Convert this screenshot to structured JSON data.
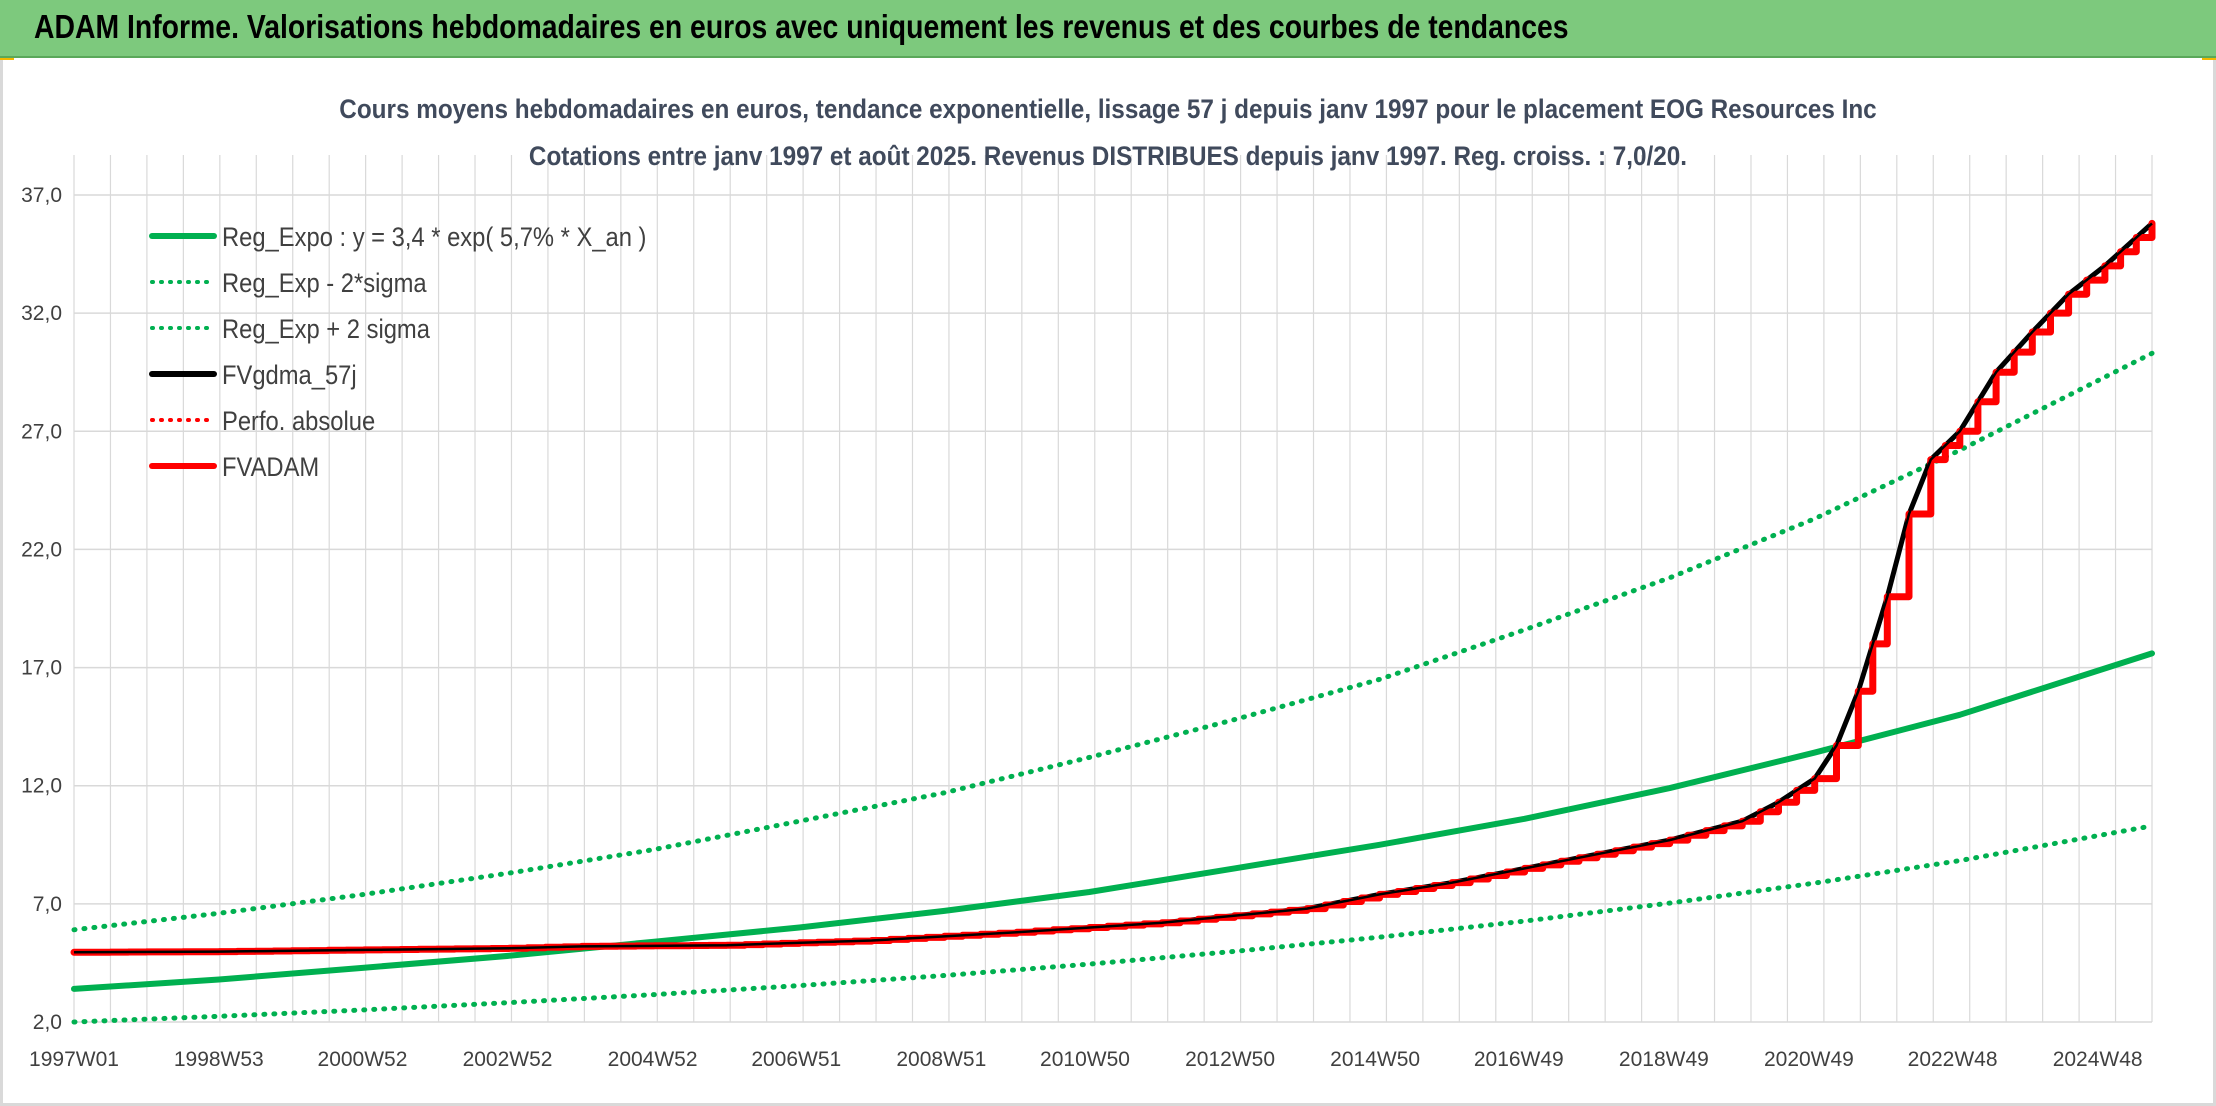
{
  "header": {
    "title": "ADAM Informe. Valorisations hebdomadaires en euros avec uniquement les revenus et des courbes de tendances"
  },
  "colors": {
    "header_bg": "#7dc97d",
    "regression": "#00b050",
    "fv_gdma": "#000000",
    "fvadam": "#ff0000",
    "grid": "#d9d9d9"
  },
  "chart_data": {
    "type": "line",
    "title": [
      "Cours moyens hebdomadaires en euros, tendance exponentielle, lissage 57 j depuis janv 1997 pour le placement EOG Resources Inc",
      "Cotations entre janv 1997 et août 2025. Revenus DISTRIBUES depuis janv 1997. Reg. croiss. : 7,0/20."
    ],
    "xlabel": "",
    "ylabel": "",
    "ylim": [
      2.0,
      37.0
    ],
    "y_ticks": [
      "2,0",
      "7,0",
      "12,0",
      "17,0",
      "22,0",
      "27,0",
      "32,0",
      "37,0"
    ],
    "x_tick_labels": [
      "1997W01",
      "1998W53",
      "2000W52",
      "2002W52",
      "2004W52",
      "2006W51",
      "2008W51",
      "2010W50",
      "2012W50",
      "2014W50",
      "2016W49",
      "2018W49",
      "2020W49",
      "2022W48",
      "2024W48"
    ],
    "x_range": [
      1997.0,
      2025.65
    ],
    "grid": true,
    "legend_position": "top-left",
    "legend": [
      {
        "label": "Reg_Expo : y = 3,4 * exp( 5,7% *  X_an )",
        "style": "solid",
        "color": "#00b050"
      },
      {
        "label": "Reg_Exp - 2*sigma",
        "style": "dotted",
        "color": "#00b050"
      },
      {
        "label": "Reg_Exp + 2 sigma",
        "style": "dotted",
        "color": "#00b050"
      },
      {
        "label": "FVgdma_57j",
        "style": "solid",
        "color": "#000000"
      },
      {
        "label": "Perfo. absolue",
        "style": "dotted",
        "color": "#ff0000"
      },
      {
        "label": "FVADAM",
        "style": "solid",
        "color": "#ff0000"
      }
    ],
    "series": [
      {
        "name": "Reg_Expo : y = 3,4 * exp( 5,7% *  X_an )",
        "x": [
          1997,
          1999,
          2001,
          2003,
          2005,
          2007,
          2009,
          2011,
          2013,
          2015,
          2017,
          2019,
          2021,
          2023,
          2025.65
        ],
        "values": [
          3.4,
          3.8,
          4.3,
          4.8,
          5.4,
          6.0,
          6.7,
          7.5,
          8.5,
          9.5,
          10.6,
          11.9,
          13.4,
          15.0,
          17.6
        ]
      },
      {
        "name": "Reg_Exp - 2*sigma",
        "x": [
          1997,
          1999,
          2001,
          2003,
          2005,
          2007,
          2009,
          2011,
          2013,
          2015,
          2017,
          2019,
          2021,
          2023,
          2025.65
        ],
        "values": [
          2.0,
          2.24,
          2.51,
          2.82,
          3.16,
          3.54,
          3.97,
          4.45,
          4.99,
          5.59,
          6.27,
          7.03,
          7.88,
          8.83,
          10.3
        ]
      },
      {
        "name": "Reg_Exp + 2 sigma",
        "x": [
          1997,
          1999,
          2001,
          2003,
          2005,
          2007,
          2009,
          2011,
          2013,
          2015,
          2017,
          2019,
          2021,
          2023,
          2025.65
        ],
        "values": [
          5.9,
          6.6,
          7.4,
          8.3,
          9.3,
          10.5,
          11.7,
          13.2,
          14.8,
          16.5,
          18.6,
          20.8,
          23.3,
          26.2,
          30.3
        ]
      },
      {
        "name": "FVgdma_57j",
        "x": [
          1997,
          1999,
          2001,
          2003,
          2004,
          2006,
          2008,
          2010,
          2012,
          2014,
          2015,
          2016,
          2017,
          2018,
          2019,
          2020,
          2020.5,
          2021,
          2021.3,
          2021.6,
          2022,
          2022.3,
          2022.6,
          2023,
          2023.5,
          2024,
          2024.5,
          2025,
          2025.65
        ],
        "values": [
          4.95,
          4.98,
          5.05,
          5.12,
          5.2,
          5.25,
          5.45,
          5.8,
          6.2,
          6.8,
          7.4,
          7.9,
          8.5,
          9.1,
          9.7,
          10.5,
          11.3,
          12.3,
          13.7,
          16.0,
          20.0,
          23.5,
          25.8,
          27.0,
          29.5,
          31.2,
          32.8,
          34.0,
          35.8
        ]
      },
      {
        "name": "FVADAM",
        "x": [
          1997,
          1999,
          2001,
          2003,
          2004,
          2006,
          2008,
          2010,
          2012,
          2014,
          2015,
          2016,
          2017,
          2018,
          2019,
          2020,
          2020.5,
          2021,
          2021.3,
          2021.6,
          2022,
          2022.3,
          2022.6,
          2023,
          2023.5,
          2024,
          2024.5,
          2025,
          2025.65
        ],
        "values": [
          4.95,
          4.98,
          5.05,
          5.12,
          5.2,
          5.25,
          5.45,
          5.8,
          6.2,
          6.8,
          7.4,
          7.9,
          8.5,
          9.1,
          9.7,
          10.5,
          11.3,
          12.3,
          13.7,
          16.0,
          20.0,
          23.5,
          25.8,
          27.0,
          29.5,
          31.2,
          32.8,
          34.0,
          35.8
        ]
      }
    ]
  }
}
